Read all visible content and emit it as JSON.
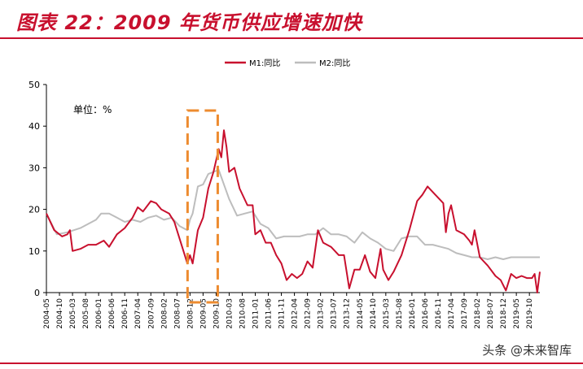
{
  "header": {
    "title": "图表 22：2009 年货币供应增速加快"
  },
  "watermark": "头条 @未来智库",
  "colors": {
    "m1": "#c8102e",
    "m2": "#bdbdbd",
    "box": "#ed8b2f",
    "axis": "#000000"
  },
  "chart_data": {
    "type": "line",
    "unit_label": "单位：%",
    "ylim": [
      0,
      50
    ],
    "yticks": [
      0,
      10,
      20,
      30,
      40,
      50
    ],
    "legend_position": "top-center",
    "xtick_labels": [
      "2004-05",
      "2004-10",
      "2005-03",
      "2005-08",
      "2006-01",
      "2006-06",
      "2006-11",
      "2007-04",
      "2007-09",
      "2008-02",
      "2008-07",
      "2008-12",
      "2009-05",
      "2009-10",
      "2010-03",
      "2010-08",
      "2011-01",
      "2011-06",
      "2011-11",
      "2012-04",
      "2012-09",
      "2013-02",
      "2013-07",
      "2013-12",
      "2014-05",
      "2014-10",
      "2015-03",
      "2015-08",
      "2016-01",
      "2016-06",
      "2016-11",
      "2017-04",
      "2017-09",
      "2018-02",
      "2018-07",
      "2018-12",
      "2019-05",
      "2019-10"
    ],
    "highlight": {
      "from": "2008-12",
      "to": "2009-10"
    },
    "series": [
      {
        "name": "M1:同比",
        "points": [
          [
            "2004-05",
            19
          ],
          [
            "2004-08",
            15
          ],
          [
            "2004-11",
            13.5
          ],
          [
            "2005-01",
            14
          ],
          [
            "2005-02",
            15
          ],
          [
            "2005-03",
            10
          ],
          [
            "2005-06",
            10.5
          ],
          [
            "2005-09",
            11.5
          ],
          [
            "2005-12",
            11.5
          ],
          [
            "2006-03",
            12.5
          ],
          [
            "2006-05",
            11
          ],
          [
            "2006-08",
            14
          ],
          [
            "2006-11",
            15.5
          ],
          [
            "2007-02",
            18
          ],
          [
            "2007-04",
            20.5
          ],
          [
            "2007-06",
            19.5
          ],
          [
            "2007-09",
            22
          ],
          [
            "2007-11",
            21.5
          ],
          [
            "2008-01",
            20
          ],
          [
            "2008-04",
            19
          ],
          [
            "2008-06",
            17
          ],
          [
            "2008-09",
            11
          ],
          [
            "2008-11",
            7
          ],
          [
            "2008-12",
            9
          ],
          [
            "2009-01",
            7
          ],
          [
            "2009-03",
            15
          ],
          [
            "2009-05",
            18
          ],
          [
            "2009-07",
            25
          ],
          [
            "2009-09",
            29
          ],
          [
            "2009-11",
            34.5
          ],
          [
            "2009-12",
            32.5
          ],
          [
            "2010-01",
            39
          ],
          [
            "2010-02",
            35
          ],
          [
            "2010-03",
            29
          ],
          [
            "2010-05",
            30
          ],
          [
            "2010-07",
            25
          ],
          [
            "2010-10",
            21
          ],
          [
            "2010-12",
            21
          ],
          [
            "2011-01",
            14
          ],
          [
            "2011-03",
            15
          ],
          [
            "2011-05",
            12
          ],
          [
            "2011-07",
            12
          ],
          [
            "2011-09",
            9
          ],
          [
            "2011-11",
            7
          ],
          [
            "2012-01",
            3
          ],
          [
            "2012-03",
            4.5
          ],
          [
            "2012-05",
            3.5
          ],
          [
            "2012-07",
            4.5
          ],
          [
            "2012-09",
            7.5
          ],
          [
            "2012-11",
            6
          ],
          [
            "2013-01",
            15
          ],
          [
            "2013-03",
            12
          ],
          [
            "2013-06",
            11
          ],
          [
            "2013-09",
            9
          ],
          [
            "2013-11",
            9
          ],
          [
            "2014-01",
            1
          ],
          [
            "2014-03",
            5.5
          ],
          [
            "2014-05",
            5.5
          ],
          [
            "2014-07",
            9
          ],
          [
            "2014-09",
            5
          ],
          [
            "2014-11",
            3.5
          ],
          [
            "2015-01",
            10.5
          ],
          [
            "2015-02",
            5.5
          ],
          [
            "2015-04",
            3
          ],
          [
            "2015-06",
            5
          ],
          [
            "2015-09",
            9
          ],
          [
            "2015-12",
            15
          ],
          [
            "2016-03",
            22
          ],
          [
            "2016-05",
            23.5
          ],
          [
            "2016-07",
            25.5
          ],
          [
            "2016-10",
            23.5
          ],
          [
            "2017-01",
            21.5
          ],
          [
            "2017-02",
            14.5
          ],
          [
            "2017-03",
            19
          ],
          [
            "2017-04",
            21
          ],
          [
            "2017-06",
            15
          ],
          [
            "2017-09",
            14
          ],
          [
            "2017-11",
            12.5
          ],
          [
            "2017-12",
            11.5
          ],
          [
            "2018-01",
            15
          ],
          [
            "2018-03",
            8.5
          ],
          [
            "2018-06",
            6.5
          ],
          [
            "2018-09",
            4
          ],
          [
            "2018-11",
            3
          ],
          [
            "2019-01",
            0.5
          ],
          [
            "2019-03",
            4.5
          ],
          [
            "2019-05",
            3.5
          ],
          [
            "2019-07",
            4
          ],
          [
            "2019-09",
            3.5
          ],
          [
            "2019-11",
            3.5
          ],
          [
            "2019-12",
            4.5
          ],
          [
            "2020-01",
            0
          ],
          [
            "2020-02",
            5
          ]
        ]
      },
      {
        "name": "M2:同比",
        "points": [
          [
            "2004-05",
            19
          ],
          [
            "2004-09",
            14
          ],
          [
            "2005-01",
            14.5
          ],
          [
            "2005-06",
            15.5
          ],
          [
            "2005-12",
            17.5
          ],
          [
            "2006-02",
            19
          ],
          [
            "2006-05",
            19
          ],
          [
            "2006-08",
            18
          ],
          [
            "2006-11",
            17
          ],
          [
            "2007-02",
            17.5
          ],
          [
            "2007-05",
            17
          ],
          [
            "2007-08",
            18
          ],
          [
            "2007-11",
            18.5
          ],
          [
            "2008-02",
            17.5
          ],
          [
            "2008-05",
            18
          ],
          [
            "2008-08",
            16
          ],
          [
            "2008-11",
            15
          ],
          [
            "2008-12",
            17.5
          ],
          [
            "2009-01",
            19
          ],
          [
            "2009-03",
            25.5
          ],
          [
            "2009-05",
            26
          ],
          [
            "2009-07",
            28.5
          ],
          [
            "2009-09",
            29
          ],
          [
            "2009-11",
            29.5
          ],
          [
            "2010-01",
            26
          ],
          [
            "2010-03",
            22.5
          ],
          [
            "2010-06",
            18.5
          ],
          [
            "2010-09",
            19
          ],
          [
            "2010-12",
            19.5
          ],
          [
            "2011-03",
            16.5
          ],
          [
            "2011-06",
            15.5
          ],
          [
            "2011-09",
            13
          ],
          [
            "2011-12",
            13.5
          ],
          [
            "2012-03",
            13.5
          ],
          [
            "2012-06",
            13.5
          ],
          [
            "2012-09",
            14
          ],
          [
            "2012-12",
            14
          ],
          [
            "2013-03",
            15.5
          ],
          [
            "2013-06",
            14
          ],
          [
            "2013-09",
            14
          ],
          [
            "2013-12",
            13.5
          ],
          [
            "2014-03",
            12
          ],
          [
            "2014-06",
            14.5
          ],
          [
            "2014-09",
            13
          ],
          [
            "2014-12",
            12
          ],
          [
            "2015-03",
            10.5
          ],
          [
            "2015-06",
            10
          ],
          [
            "2015-09",
            13
          ],
          [
            "2015-12",
            13.5
          ],
          [
            "2016-03",
            13.5
          ],
          [
            "2016-06",
            11.5
          ],
          [
            "2016-09",
            11.5
          ],
          [
            "2016-12",
            11
          ],
          [
            "2017-03",
            10.5
          ],
          [
            "2017-06",
            9.5
          ],
          [
            "2017-09",
            9
          ],
          [
            "2017-12",
            8.5
          ],
          [
            "2018-03",
            8.5
          ],
          [
            "2018-06",
            8
          ],
          [
            "2018-09",
            8.5
          ],
          [
            "2018-12",
            8
          ],
          [
            "2019-03",
            8.5
          ],
          [
            "2019-06",
            8.5
          ],
          [
            "2019-09",
            8.5
          ],
          [
            "2019-12",
            8.5
          ],
          [
            "2020-02",
            8.5
          ]
        ]
      }
    ]
  }
}
